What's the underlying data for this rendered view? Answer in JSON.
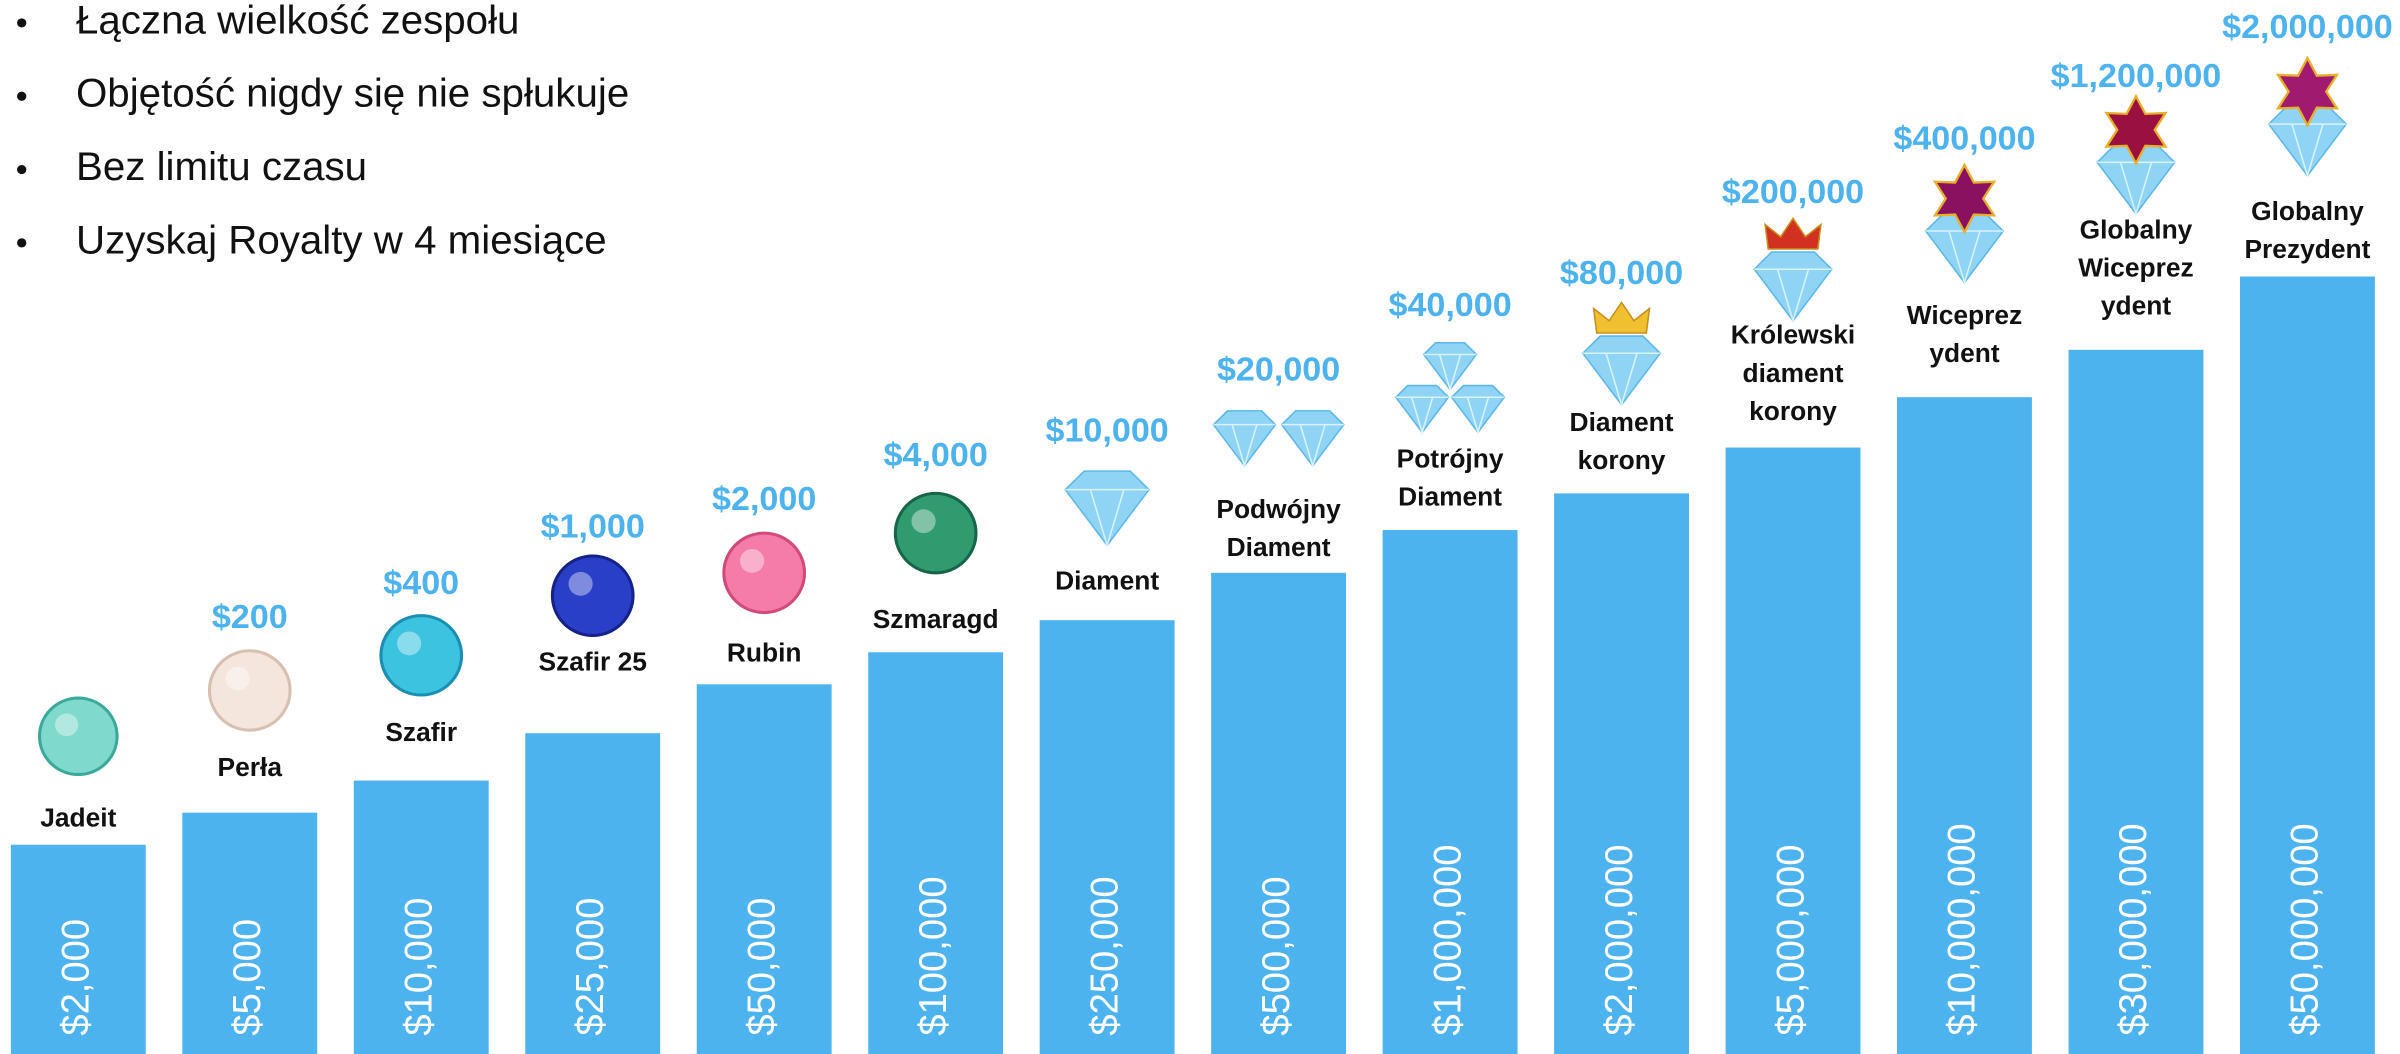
{
  "bullets": [
    "Łączna wielkość zespołu",
    "Objętość nigdy się nie spłukuje",
    "Bez limitu czasu",
    "Uzyskaj Royalty w 4 miesiące"
  ],
  "ranks": [
    {
      "name": [
        "Jadeit"
      ],
      "volume": "$2,000"
    },
    {
      "name": [
        "Perła"
      ],
      "reward": "$200",
      "volume": "$5,000"
    },
    {
      "name": [
        "Szafir"
      ],
      "reward": "$400",
      "volume": "$10,000"
    },
    {
      "name": [
        "Szafir 25"
      ],
      "reward": "$1,000",
      "volume": "$25,000"
    },
    {
      "name": [
        "Rubin"
      ],
      "reward": "$2,000",
      "volume": "$50,000"
    },
    {
      "name": [
        "Szmaragd"
      ],
      "reward": "$4,000",
      "volume": "$100,000"
    },
    {
      "name": [
        "Diament"
      ],
      "reward": "$10,000",
      "volume": "$250,000"
    },
    {
      "name": [
        "Podwójny",
        "Diament"
      ],
      "reward": "$20,000",
      "volume": "$500,000"
    },
    {
      "name": [
        "Potrójny",
        "Diament"
      ],
      "reward": "$40,000",
      "volume": "$1,000,000"
    },
    {
      "name": [
        "Diament",
        "korony"
      ],
      "reward": "$80,000",
      "volume": "$2,000,000"
    },
    {
      "name": [
        "Królewski",
        "diament",
        "korony"
      ],
      "reward": "$200,000",
      "volume": "$5,000,000"
    },
    {
      "name": [
        "Wiceprez",
        "ydent"
      ],
      "reward": "$400,000",
      "volume": "$10,000,000"
    },
    {
      "name": [
        "Globalny",
        "Wiceprez",
        "ydent"
      ],
      "reward": "$1,200,000",
      "volume": "$30,000,000"
    },
    {
      "name": [
        "Globalny",
        "Prezydent"
      ],
      "reward": "$2,000,000",
      "volume": "$50,000,000"
    }
  ]
}
